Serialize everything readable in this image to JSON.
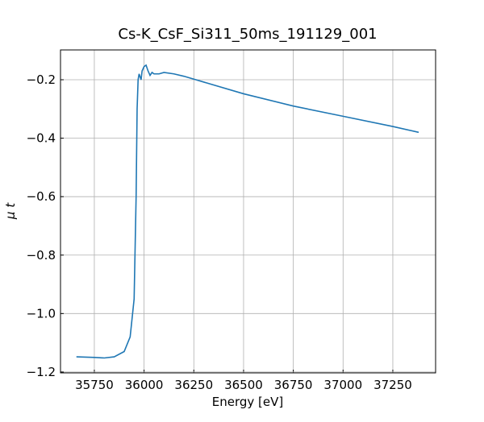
{
  "chart_data": {
    "type": "line",
    "title": "Cs-K_CsF_Si311_50ms_191129_001",
    "x_label": "Energy [eV]",
    "y_label": "μ t",
    "xlim": [
      35580,
      37465
    ],
    "ylim": [
      -1.203,
      -0.098
    ],
    "xticks": [
      35750,
      36000,
      36250,
      36500,
      36750,
      37000,
      37250
    ],
    "yticks": [
      {
        "value": -1.2,
        "label": "−1.2"
      },
      {
        "value": -1.0,
        "label": "−1.0"
      },
      {
        "value": -0.8,
        "label": "−0.8"
      },
      {
        "value": -0.6,
        "label": "−0.6"
      },
      {
        "value": -0.4,
        "label": "−0.4"
      },
      {
        "value": -0.2,
        "label": "−0.2"
      }
    ],
    "grid": true,
    "series": [
      {
        "color": "#1f77b4",
        "x": [
          35660,
          35750,
          35800,
          35850,
          35900,
          35930,
          35950,
          35960,
          35965,
          35970,
          35975,
          35985,
          35990,
          36000,
          36010,
          36020,
          36030,
          36040,
          36050,
          36075,
          36100,
          36150,
          36200,
          36250,
          36500,
          36750,
          37000,
          37250,
          37380
        ],
        "values": [
          -1.148,
          -1.15,
          -1.152,
          -1.148,
          -1.13,
          -1.08,
          -0.95,
          -0.6,
          -0.3,
          -0.2,
          -0.18,
          -0.2,
          -0.17,
          -0.155,
          -0.15,
          -0.17,
          -0.185,
          -0.175,
          -0.18,
          -0.18,
          -0.175,
          -0.18,
          -0.188,
          -0.198,
          -0.248,
          -0.29,
          -0.325,
          -0.36,
          -0.38
        ]
      }
    ]
  }
}
